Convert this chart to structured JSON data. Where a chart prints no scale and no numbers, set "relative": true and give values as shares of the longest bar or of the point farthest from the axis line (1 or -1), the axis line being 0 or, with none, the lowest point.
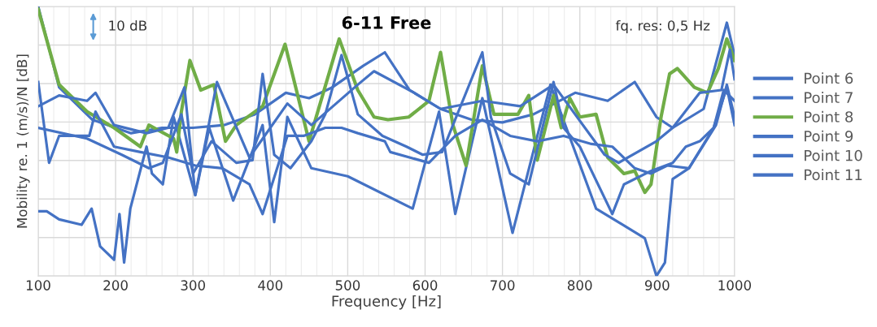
{
  "chart_data": {
    "type": "line",
    "relative": true,
    "title": "6-11 Free",
    "xlabel": "Frequency [Hz]",
    "ylabel": "Mobility re. 1 (m/s)/N [dB]",
    "annotations": [
      "10 dB",
      "fq. res: 0,5 Hz"
    ],
    "xlim": [
      100,
      1000
    ],
    "xticks": [
      100,
      200,
      300,
      400,
      500,
      600,
      700,
      800,
      900,
      1000
    ],
    "grid": true,
    "legend": "right",
    "line_style": "solid",
    "marker": "none",
    "series": [
      {
        "name": "Point 6",
        "color": "#4472c4",
        "x": [
          100,
          127,
          170,
          220,
          260,
          300,
          340,
          380,
          420,
          450,
          480,
          520,
          548,
          580,
          620,
          660,
          700,
          740,
          794,
          836,
          871,
          899,
          920,
          960,
          990,
          1000
        ],
        "values": [
          1.0,
          0.7,
          0.58,
          0.53,
          0.55,
          0.55,
          0.56,
          0.6,
          0.68,
          0.66,
          0.7,
          0.78,
          0.83,
          0.69,
          0.62,
          0.58,
          0.57,
          0.6,
          0.68,
          0.65,
          0.72,
          0.59,
          0.55,
          0.62,
          0.94,
          0.82
        ]
      },
      {
        "name": "Point 7",
        "color": "#4472c4",
        "x": [
          100,
          111,
          127,
          156,
          169,
          180,
          198,
          205,
          211,
          219,
          240,
          247,
          261,
          275,
          303,
          321,
          352,
          390,
          405,
          422,
          453,
          500,
          584,
          618,
          639,
          674,
          713,
          762,
          821,
          884,
          899,
          910,
          920,
          941,
          976,
          990,
          1000
        ],
        "values": [
          0.24,
          0.24,
          0.21,
          0.19,
          0.25,
          0.11,
          0.06,
          0.23,
          0.05,
          0.25,
          0.48,
          0.38,
          0.34,
          0.59,
          0.3,
          0.55,
          0.28,
          0.56,
          0.2,
          0.59,
          0.4,
          0.37,
          0.25,
          0.61,
          0.23,
          0.66,
          0.16,
          0.71,
          0.25,
          0.14,
          0.0,
          0.05,
          0.36,
          0.4,
          0.56,
          0.71,
          0.59
        ]
      },
      {
        "name": "Point 8",
        "color": "#70ad47",
        "x": [
          100,
          127,
          163,
          198,
          232,
          243,
          275,
          279,
          285,
          296,
          310,
          327,
          342,
          356,
          390,
          419,
          450,
          489,
          513,
          534,
          552,
          579,
          605,
          620,
          636,
          653,
          674,
          689,
          720,
          734,
          745,
          766,
          776,
          787,
          800,
          821,
          836,
          857,
          871,
          884,
          892,
          905,
          916,
          926,
          948,
          965,
          979,
          990,
          1000
        ],
        "values": [
          0.99,
          0.71,
          0.61,
          0.55,
          0.48,
          0.56,
          0.51,
          0.46,
          0.61,
          0.8,
          0.69,
          0.71,
          0.5,
          0.56,
          0.63,
          0.86,
          0.5,
          0.88,
          0.69,
          0.59,
          0.58,
          0.59,
          0.65,
          0.83,
          0.56,
          0.41,
          0.78,
          0.6,
          0.6,
          0.67,
          0.43,
          0.67,
          0.55,
          0.66,
          0.59,
          0.6,
          0.44,
          0.38,
          0.39,
          0.31,
          0.34,
          0.59,
          0.75,
          0.77,
          0.7,
          0.68,
          0.77,
          0.88,
          0.8
        ]
      },
      {
        "name": "Point 9",
        "color": "#4472c4",
        "x": [
          100,
          114,
          127,
          166,
          174,
          198,
          232,
          268,
          303,
          338,
          373,
          390,
          422,
          443,
          471,
          492,
          513,
          548,
          555,
          605,
          639,
          674,
          710,
          745,
          779,
          815,
          842,
          871,
          892,
          913,
          941,
          973,
          990,
          1000
        ],
        "values": [
          0.72,
          0.42,
          0.52,
          0.52,
          0.61,
          0.48,
          0.46,
          0.44,
          0.41,
          0.4,
          0.34,
          0.23,
          0.52,
          0.52,
          0.55,
          0.55,
          0.53,
          0.5,
          0.46,
          0.42,
          0.52,
          0.58,
          0.52,
          0.5,
          0.52,
          0.49,
          0.48,
          0.4,
          0.38,
          0.41,
          0.4,
          0.55,
          0.7,
          0.56
        ]
      },
      {
        "name": "Point 10",
        "color": "#4472c4",
        "x": [
          100,
          127,
          163,
          174,
          198,
          240,
          268,
          289,
          303,
          331,
          373,
          422,
          453,
          513,
          534,
          586,
          620,
          674,
          723,
          766,
          832,
          850,
          899,
          920,
          955,
          983,
          994,
          1000
        ],
        "values": [
          0.63,
          0.67,
          0.65,
          0.68,
          0.56,
          0.53,
          0.55,
          0.7,
          0.3,
          0.72,
          0.44,
          0.64,
          0.56,
          0.71,
          0.76,
          0.68,
          0.62,
          0.65,
          0.63,
          0.71,
          0.45,
          0.42,
          0.5,
          0.55,
          0.68,
          0.69,
          0.84,
          0.73
        ]
      },
      {
        "name": "Point 11",
        "color": "#4472c4",
        "x": [
          100,
          163,
          208,
          243,
          261,
          285,
          300,
          324,
          356,
          377,
          390,
          405,
          426,
          453,
          471,
          492,
          513,
          545,
          576,
          597,
          622,
          636,
          674,
          685,
          710,
          734,
          766,
          779,
          800,
          842,
          857,
          892,
          920,
          937,
          955,
          973,
          986,
          1000
        ],
        "values": [
          0.55,
          0.51,
          0.45,
          0.4,
          0.42,
          0.6,
          0.38,
          0.5,
          0.42,
          0.43,
          0.75,
          0.45,
          0.4,
          0.5,
          0.6,
          0.82,
          0.6,
          0.52,
          0.48,
          0.45,
          0.46,
          0.56,
          0.83,
          0.59,
          0.38,
          0.34,
          0.72,
          0.55,
          0.48,
          0.23,
          0.34,
          0.39,
          0.42,
          0.48,
          0.5,
          0.55,
          0.69,
          0.65
        ]
      }
    ]
  }
}
